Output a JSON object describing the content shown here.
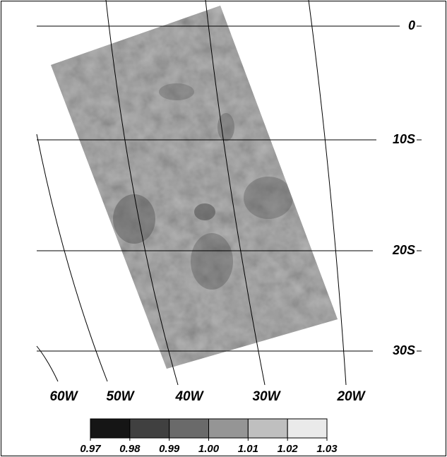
{
  "map": {
    "latitude_labels": [
      "0",
      "10S",
      "20S",
      "30S"
    ],
    "longitude_labels": [
      "60W",
      "50W",
      "40W",
      "30W",
      "20W"
    ],
    "colorbar": {
      "lim": [
        0.97,
        1.03
      ],
      "ticks": [
        0.97,
        0.98,
        0.99,
        {
          "value": 1,
          "label": "1.00"
        },
        1.01,
        1.02,
        1.03
      ]
    }
  }
}
